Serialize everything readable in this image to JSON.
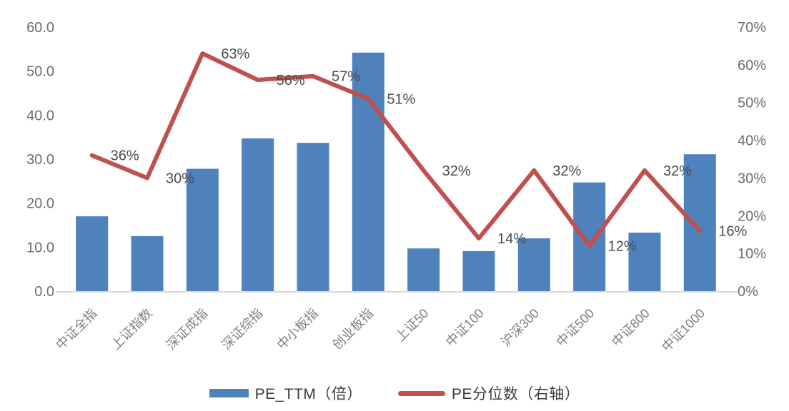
{
  "chart_data": {
    "type": "combo",
    "categories": [
      "中证全指",
      "上证指数",
      "深证成指",
      "深证综指",
      "中小板指",
      "创业板指",
      "上证50",
      "中证100",
      "沪深300",
      "中证500",
      "中证800",
      "中证1000"
    ],
    "series": [
      {
        "name": "PE_TTM（倍）",
        "chart": "bar",
        "axis": "left",
        "color": "#4F81BD",
        "values": [
          17.0,
          12.5,
          27.8,
          34.7,
          33.7,
          54.2,
          9.7,
          9.1,
          12.0,
          24.7,
          13.3,
          31.1
        ]
      },
      {
        "name": "PE分位数（右轴）",
        "chart": "line",
        "axis": "right",
        "color": "#C0504D",
        "values": [
          36,
          30,
          63,
          56,
          57,
          51,
          32,
          14,
          32,
          12,
          32,
          16
        ],
        "labels": [
          "36%",
          "30%",
          "63%",
          "56%",
          "57%",
          "51%",
          "32%",
          "14%",
          "32%",
          "12%",
          "32%",
          "16%"
        ]
      }
    ],
    "left_axis": {
      "min": 0,
      "max": 60,
      "ticks": [
        "60.0",
        "50.0",
        "40.0",
        "30.0",
        "20.0",
        "10.0",
        "0.0"
      ]
    },
    "right_axis": {
      "min": 0,
      "max": 70,
      "ticks": [
        "70%",
        "60%",
        "50%",
        "40%",
        "30%",
        "20%",
        "10%",
        "0%"
      ]
    },
    "legend_position": "bottom",
    "grid": false,
    "colors": {
      "bar": "#4F81BD",
      "line": "#C0504D",
      "axis_text": "#6e6e6e",
      "category_text": "#7f7f7f",
      "data_label_text": "#4a4a4a",
      "legend_text": "#3d3d3d",
      "axis_line": "#d9d9d9",
      "background": "#ffffff"
    }
  }
}
